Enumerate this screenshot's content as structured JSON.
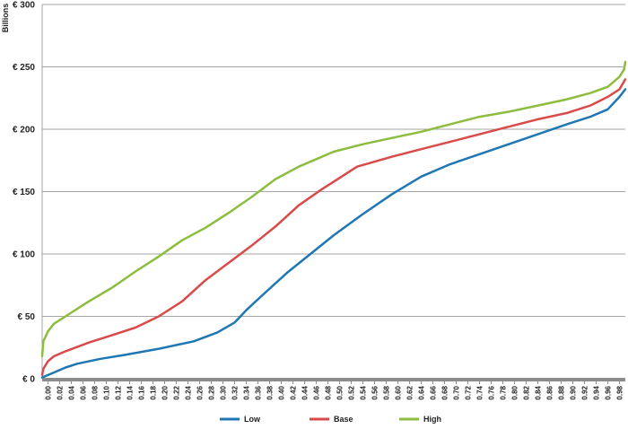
{
  "chart_data": {
    "type": "line",
    "ylabel": "Billions",
    "xlabel": "",
    "ylim": [
      0,
      300
    ],
    "y_ticks": [
      0,
      50,
      100,
      150,
      200,
      250,
      300
    ],
    "y_tick_labels": [
      "€ 0",
      "€ 50",
      "€ 100",
      "€ 150",
      "€ 200",
      "€ 250",
      "€ 300"
    ],
    "xlim": [
      0,
      1
    ],
    "x_tick_labels": [
      "0.00",
      "0.02",
      "0.04",
      "0.06",
      "0.08",
      "0.10",
      "0.12",
      "0.14",
      "0.16",
      "0.18",
      "0.20",
      "0.22",
      "0.24",
      "0.26",
      "0.28",
      "0.30",
      "0.32",
      "0.34",
      "0.36",
      "0.38",
      "0.40",
      "0.42",
      "0.44",
      "0.46",
      "0.48",
      "0.50",
      "0.52",
      "0.54",
      "0.56",
      "0.58",
      "0.60",
      "0.62",
      "0.64",
      "0.66",
      "0.68",
      "0.70",
      "0.72",
      "0.74",
      "0.76",
      "0.78",
      "0.80",
      "0.82",
      "0.84",
      "0.86",
      "0.88",
      "0.90",
      "0.92",
      "0.94",
      "0.96",
      "0.98"
    ],
    "grid": "horizontal",
    "legend_position": "bottom",
    "series": [
      {
        "name": "Low",
        "color": "#1f77b4",
        "x": [
          0.0,
          0.005,
          0.02,
          0.04,
          0.06,
          0.1,
          0.14,
          0.2,
          0.26,
          0.3,
          0.33,
          0.35,
          0.38,
          0.42,
          0.46,
          0.5,
          0.55,
          0.6,
          0.65,
          0.7,
          0.75,
          0.8,
          0.85,
          0.9,
          0.94,
          0.97,
          0.99,
          1.0
        ],
        "y": [
          1,
          2,
          5,
          9,
          12,
          16,
          19,
          24,
          30,
          37,
          45,
          55,
          68,
          85,
          100,
          115,
          132,
          148,
          162,
          172,
          180,
          188,
          196,
          204,
          210,
          216,
          226,
          232
        ]
      },
      {
        "name": "Base",
        "color": "#d94a4a",
        "x": [
          0.0,
          0.002,
          0.01,
          0.02,
          0.04,
          0.08,
          0.12,
          0.16,
          0.2,
          0.24,
          0.28,
          0.32,
          0.36,
          0.4,
          0.44,
          0.48,
          0.5,
          0.54,
          0.6,
          0.65,
          0.7,
          0.75,
          0.8,
          0.85,
          0.9,
          0.94,
          0.97,
          0.99,
          1.0
        ],
        "y": [
          3,
          8,
          14,
          18,
          22,
          29,
          35,
          41,
          50,
          62,
          79,
          93,
          107,
          122,
          139,
          152,
          158,
          170,
          178,
          184,
          190,
          196,
          202,
          208,
          213,
          219,
          226,
          232,
          240
        ]
      },
      {
        "name": "High",
        "color": "#8cbd3f",
        "x": [
          0.0,
          0.002,
          0.01,
          0.02,
          0.04,
          0.08,
          0.12,
          0.16,
          0.2,
          0.24,
          0.28,
          0.32,
          0.36,
          0.4,
          0.44,
          0.5,
          0.55,
          0.6,
          0.65,
          0.7,
          0.75,
          0.8,
          0.85,
          0.9,
          0.94,
          0.97,
          0.99,
          0.998,
          1.0
        ],
        "y": [
          18,
          30,
          38,
          44,
          50,
          62,
          73,
          86,
          98,
          111,
          121,
          133,
          146,
          160,
          170,
          182,
          188,
          193,
          198,
          204,
          210,
          214,
          219,
          224,
          229,
          234,
          242,
          248,
          254
        ]
      }
    ]
  }
}
